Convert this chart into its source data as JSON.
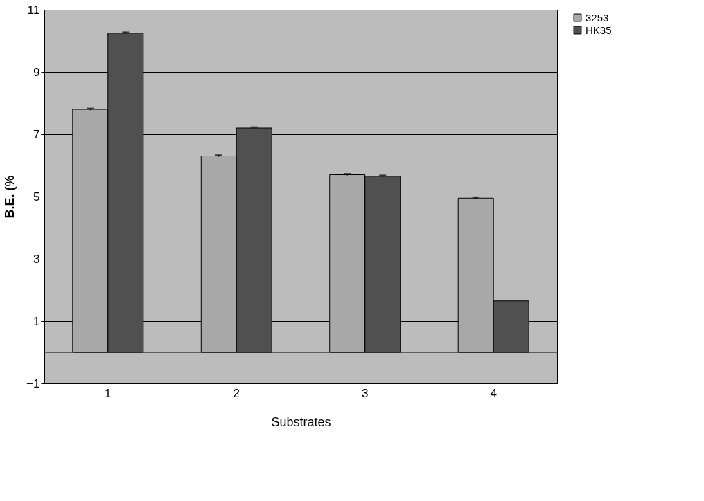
{
  "chart_data": {
    "type": "bar",
    "xlabel": "Substrates",
    "ylabel": "B.E. (%",
    "categories": [
      "1",
      "2",
      "3",
      "4"
    ],
    "series": [
      {
        "name": "3253",
        "color": "#a8a8a8",
        "values": [
          7.8,
          6.3,
          5.7,
          4.95
        ],
        "errors": [
          0.03,
          0.03,
          0.03,
          0.03
        ]
      },
      {
        "name": "HK35",
        "color": "#505050",
        "values": [
          10.25,
          7.2,
          5.65,
          1.65
        ],
        "errors": [
          0.03,
          0.03,
          0.03,
          null
        ]
      }
    ],
    "ylim": [
      -1,
      11
    ],
    "yticks": [
      -1,
      1,
      3,
      5,
      7,
      9,
      11
    ],
    "grid": "y",
    "legend": "right"
  }
}
